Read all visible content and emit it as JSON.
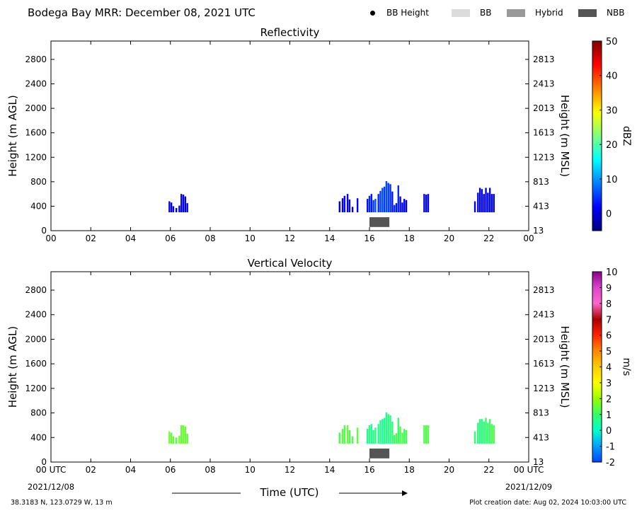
{
  "page": {
    "title": "Bodega Bay MRR:  December 08, 2021 UTC",
    "legend": [
      {
        "label": "BB Height",
        "marker": "dot",
        "color": "#000000"
      },
      {
        "label": "BB",
        "marker": "swatch",
        "color": "#dcdcdc"
      },
      {
        "label": "Hybrid",
        "marker": "swatch",
        "color": "#999999"
      },
      {
        "label": "NBB",
        "marker": "swatch",
        "color": "#555555"
      }
    ],
    "xlabel": "Time (UTC)",
    "date_start": "2021/12/08",
    "date_end": "2021/12/09",
    "footer_left": "38.3183 N, 123.0729 W, 13 m",
    "footer_right": "Plot creation date: Aug 02, 2024 10:03:00 UTC"
  },
  "chart_data": [
    {
      "type": "heatmap",
      "title": "Reflectivity",
      "ylabel": "Height (m AGL)",
      "ylabel_right": "Height (m MSL)",
      "colorbar_label": "dBZ",
      "xlim": [
        0,
        24
      ],
      "ylim": [
        0,
        3100
      ],
      "x_ticks": [
        "00",
        "02",
        "04",
        "06",
        "08",
        "10",
        "12",
        "14",
        "16",
        "18",
        "20",
        "22",
        "00"
      ],
      "y_ticks": [
        0,
        400,
        800,
        1200,
        1600,
        2000,
        2400,
        2800
      ],
      "y_ticks_right": [
        "13",
        "413",
        "813",
        "1213",
        "1613",
        "2013",
        "2413",
        "2813"
      ],
      "colorbar_range": [
        -5,
        50
      ],
      "colorbar_ticks": [
        "0",
        "10",
        "20",
        "30",
        "40",
        "50"
      ],
      "colorbar_colors": [
        "#00007f",
        "#0000ff",
        "#0080ff",
        "#00ffff",
        "#7fff7f",
        "#ffff00",
        "#ff8000",
        "#ff0000",
        "#7f0000"
      ],
      "columns": [
        {
          "t": 5.95,
          "top": 480,
          "v": 0
        },
        {
          "t": 6.05,
          "top": 460,
          "v": 1
        },
        {
          "t": 6.15,
          "top": 400,
          "v": 0
        },
        {
          "t": 6.3,
          "top": 370,
          "v": -1
        },
        {
          "t": 6.45,
          "top": 410,
          "v": 0
        },
        {
          "t": 6.55,
          "top": 600,
          "v": 1
        },
        {
          "t": 6.65,
          "top": 590,
          "v": 2
        },
        {
          "t": 6.75,
          "top": 560,
          "v": 1
        },
        {
          "t": 6.85,
          "top": 450,
          "v": 0
        },
        {
          "t": 14.5,
          "top": 480,
          "v": 0
        },
        {
          "t": 14.65,
          "top": 530,
          "v": 1
        },
        {
          "t": 14.75,
          "top": 570,
          "v": 2
        },
        {
          "t": 14.9,
          "top": 600,
          "v": 1
        },
        {
          "t": 15.0,
          "top": 510,
          "v": 2
        },
        {
          "t": 15.15,
          "top": 390,
          "v": 1
        },
        {
          "t": 15.4,
          "top": 530,
          "v": 2
        },
        {
          "t": 15.9,
          "top": 520,
          "v": 3
        },
        {
          "t": 16.0,
          "top": 570,
          "v": 4
        },
        {
          "t": 16.1,
          "top": 600,
          "v": 3
        },
        {
          "t": 16.2,
          "top": 500,
          "v": 5
        },
        {
          "t": 16.3,
          "top": 520,
          "v": 6
        },
        {
          "t": 16.45,
          "top": 600,
          "v": 4
        },
        {
          "t": 16.55,
          "top": 650,
          "v": 5
        },
        {
          "t": 16.65,
          "top": 700,
          "v": 6
        },
        {
          "t": 16.75,
          "top": 720,
          "v": 5
        },
        {
          "t": 16.85,
          "top": 810,
          "v": 6
        },
        {
          "t": 16.95,
          "top": 780,
          "v": 5
        },
        {
          "t": 17.05,
          "top": 760,
          "v": 4
        },
        {
          "t": 17.15,
          "top": 640,
          "v": 3
        },
        {
          "t": 17.25,
          "top": 420,
          "v": 4
        },
        {
          "t": 17.35,
          "top": 450,
          "v": 3
        },
        {
          "t": 17.45,
          "top": 740,
          "v": 4
        },
        {
          "t": 17.55,
          "top": 560,
          "v": 2
        },
        {
          "t": 17.65,
          "top": 460,
          "v": 1
        },
        {
          "t": 17.75,
          "top": 520,
          "v": 2
        },
        {
          "t": 17.85,
          "top": 500,
          "v": 1
        },
        {
          "t": 18.75,
          "top": 600,
          "v": 1
        },
        {
          "t": 18.85,
          "top": 590,
          "v": 2
        },
        {
          "t": 18.95,
          "top": 600,
          "v": 1
        },
        {
          "t": 21.3,
          "top": 480,
          "v": 1
        },
        {
          "t": 21.45,
          "top": 620,
          "v": 2
        },
        {
          "t": 21.55,
          "top": 700,
          "v": 1
        },
        {
          "t": 21.65,
          "top": 680,
          "v": 2
        },
        {
          "t": 21.75,
          "top": 600,
          "v": 1
        },
        {
          "t": 21.85,
          "top": 700,
          "v": 2
        },
        {
          "t": 21.95,
          "top": 620,
          "v": 1
        },
        {
          "t": 22.05,
          "top": 700,
          "v": 2
        },
        {
          "t": 22.15,
          "top": 600,
          "v": 1
        },
        {
          "t": 22.25,
          "top": 600,
          "v": 0
        }
      ],
      "band_bottom": 300,
      "nbb_segments": [
        {
          "start": 16.0,
          "end": 17.0,
          "bottom": 60,
          "top": 220
        }
      ]
    },
    {
      "type": "heatmap",
      "title": "Vertical Velocity",
      "ylabel": "Height (m AGL)",
      "ylabel_right": "Height (m MSL)",
      "colorbar_label": "m/s",
      "xlim": [
        0,
        24
      ],
      "ylim": [
        0,
        3100
      ],
      "x_ticks": [
        "00 UTC",
        "02",
        "04",
        "06",
        "08",
        "10",
        "12",
        "14",
        "16",
        "18",
        "20",
        "22",
        "00 UTC"
      ],
      "y_ticks": [
        0,
        400,
        800,
        1200,
        1600,
        2000,
        2400,
        2800
      ],
      "y_ticks_right": [
        "13",
        "413",
        "813",
        "1213",
        "1613",
        "2013",
        "2413",
        "2813"
      ],
      "colorbar_range": [
        -2,
        10
      ],
      "colorbar_ticks": [
        "-2",
        "-1",
        "0",
        "1",
        "2",
        "3",
        "4",
        "5",
        "6",
        "7",
        "8",
        "9",
        "10"
      ],
      "colorbar_colors": [
        "#0044ff",
        "#00a0ff",
        "#00ffcc",
        "#33ff66",
        "#99ff00",
        "#ffff00",
        "#ffcc00",
        "#ff8800",
        "#ff2200",
        "#aa0000",
        "#ff66cc",
        "#dd44cc",
        "#880088"
      ],
      "columns": [
        {
          "t": 5.95,
          "top": 500,
          "v": 1.6
        },
        {
          "t": 6.05,
          "top": 480,
          "v": 1.4
        },
        {
          "t": 6.15,
          "top": 420,
          "v": 1.5
        },
        {
          "t": 6.3,
          "top": 400,
          "v": 1.3
        },
        {
          "t": 6.45,
          "top": 430,
          "v": 1.6
        },
        {
          "t": 6.55,
          "top": 600,
          "v": 1.4
        },
        {
          "t": 6.65,
          "top": 600,
          "v": 1.6
        },
        {
          "t": 6.75,
          "top": 580,
          "v": 1.5
        },
        {
          "t": 6.85,
          "top": 460,
          "v": 1.4
        },
        {
          "t": 14.5,
          "top": 480,
          "v": 1.2
        },
        {
          "t": 14.65,
          "top": 540,
          "v": 1.4
        },
        {
          "t": 14.75,
          "top": 600,
          "v": 1.3
        },
        {
          "t": 14.9,
          "top": 600,
          "v": 1.5
        },
        {
          "t": 15.0,
          "top": 520,
          "v": 1.2
        },
        {
          "t": 15.15,
          "top": 420,
          "v": 1.3
        },
        {
          "t": 15.4,
          "top": 560,
          "v": 1.4
        },
        {
          "t": 15.9,
          "top": 540,
          "v": 0.6
        },
        {
          "t": 16.0,
          "top": 600,
          "v": 0.8
        },
        {
          "t": 16.1,
          "top": 620,
          "v": 0.5
        },
        {
          "t": 16.2,
          "top": 520,
          "v": 0.7
        },
        {
          "t": 16.3,
          "top": 560,
          "v": 0.9
        },
        {
          "t": 16.45,
          "top": 620,
          "v": 0.6
        },
        {
          "t": 16.55,
          "top": 680,
          "v": 0.8
        },
        {
          "t": 16.65,
          "top": 700,
          "v": 0.5
        },
        {
          "t": 16.75,
          "top": 720,
          "v": 0.7
        },
        {
          "t": 16.85,
          "top": 810,
          "v": 0.6
        },
        {
          "t": 16.95,
          "top": 780,
          "v": 0.8
        },
        {
          "t": 17.05,
          "top": 760,
          "v": 0.7
        },
        {
          "t": 17.15,
          "top": 660,
          "v": 0.9
        },
        {
          "t": 17.25,
          "top": 440,
          "v": 1.1
        },
        {
          "t": 17.35,
          "top": 470,
          "v": 1.2
        },
        {
          "t": 17.45,
          "top": 720,
          "v": 1.0
        },
        {
          "t": 17.55,
          "top": 580,
          "v": 1.2
        },
        {
          "t": 17.65,
          "top": 480,
          "v": 1.3
        },
        {
          "t": 17.75,
          "top": 540,
          "v": 1.1
        },
        {
          "t": 17.85,
          "top": 520,
          "v": 1.2
        },
        {
          "t": 18.75,
          "top": 600,
          "v": 1.3
        },
        {
          "t": 18.85,
          "top": 600,
          "v": 1.2
        },
        {
          "t": 18.95,
          "top": 600,
          "v": 1.4
        },
        {
          "t": 21.3,
          "top": 500,
          "v": 1.0
        },
        {
          "t": 21.45,
          "top": 640,
          "v": 0.8
        },
        {
          "t": 21.55,
          "top": 700,
          "v": 0.7
        },
        {
          "t": 21.65,
          "top": 700,
          "v": 0.9
        },
        {
          "t": 21.75,
          "top": 660,
          "v": 0.8
        },
        {
          "t": 21.85,
          "top": 720,
          "v": 1.0
        },
        {
          "t": 21.95,
          "top": 640,
          "v": 0.9
        },
        {
          "t": 22.05,
          "top": 700,
          "v": 1.1
        },
        {
          "t": 22.15,
          "top": 620,
          "v": 1.2
        },
        {
          "t": 22.25,
          "top": 600,
          "v": 1.3
        }
      ],
      "band_bottom": 300,
      "nbb_segments": [
        {
          "start": 16.0,
          "end": 17.0,
          "bottom": 60,
          "top": 220
        }
      ]
    }
  ]
}
